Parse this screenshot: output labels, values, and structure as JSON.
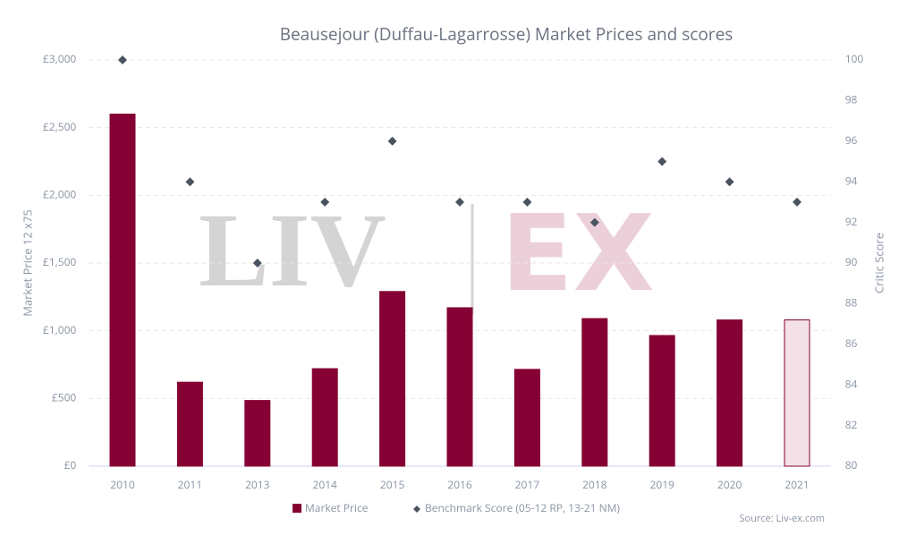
{
  "chart_data": {
    "type": "bar_scatter",
    "title": "Beausejour (Duffau-Lagarrosse) Market Prices and scores",
    "ylabel": "Market Price 12 x75",
    "y2label": "Critic Score",
    "source": "Source: Liv-ex.com",
    "watermark": [
      "LIV",
      "EX"
    ],
    "categories": [
      "2010",
      "2011",
      "2013",
      "2014",
      "2015",
      "2016",
      "2017",
      "2018",
      "2019",
      "2020",
      "2021"
    ],
    "series": [
      {
        "name": "Market Price",
        "color": "#850033",
        "bar_fills": [
          "#850033",
          "#850033",
          "#850033",
          "#850033",
          "#850033",
          "#850033",
          "#850033",
          "#850033",
          "#850033",
          "#850033",
          "#f3e1e7"
        ],
        "values": [
          2600,
          620,
          485,
          720,
          1290,
          1170,
          715,
          1090,
          965,
          1080,
          1080
        ]
      },
      {
        "name": "Benchmark Score (05-12 RP, 13-21 NM)",
        "color": "#4a5461",
        "axis": "y2",
        "values": [
          100,
          94,
          90,
          93,
          96,
          93,
          93,
          92,
          95,
          94,
          93
        ]
      }
    ],
    "ylim": [
      0,
      3000
    ],
    "yticks": [
      {
        "value": 0,
        "label": "£0"
      },
      {
        "value": 500,
        "label": "£500"
      },
      {
        "value": 1000,
        "label": "£1,000"
      },
      {
        "value": 1500,
        "label": "£1,500"
      },
      {
        "value": 2000,
        "label": "£2,000"
      },
      {
        "value": 2500,
        "label": "£2,500"
      },
      {
        "value": 3000,
        "label": "£3,000"
      }
    ],
    "y2lim": [
      80,
      100
    ],
    "y2ticks": [
      80,
      82,
      84,
      86,
      88,
      90,
      92,
      94,
      96,
      98,
      100
    ],
    "grid": true
  }
}
